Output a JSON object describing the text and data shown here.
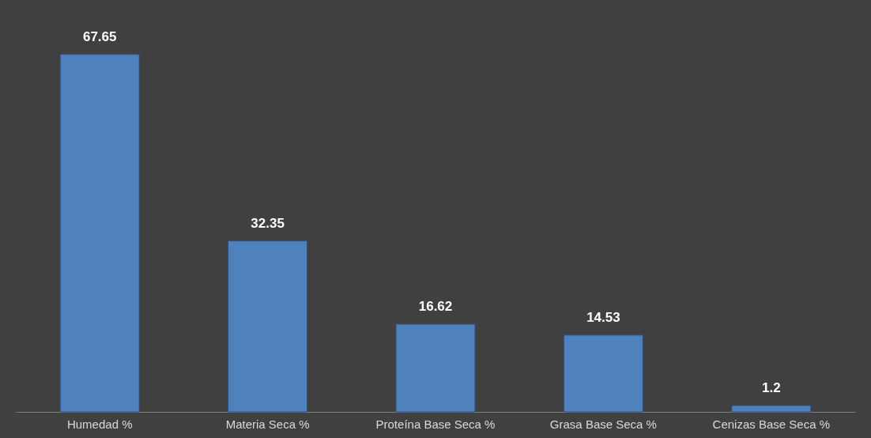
{
  "chart_data": {
    "type": "bar",
    "categories": [
      "Humedad %",
      "Materia Seca %",
      "Proteína Base Seca %",
      "Grasa Base Seca %",
      "Cenizas Base Seca %"
    ],
    "values": [
      67.65,
      32.35,
      16.62,
      14.53,
      1.2
    ],
    "color": "#4f81bd",
    "data_labels": true,
    "tick_labels": "x",
    "grid": false
  }
}
